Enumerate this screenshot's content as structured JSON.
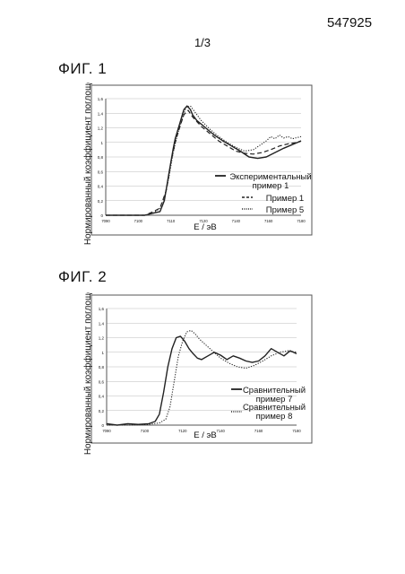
{
  "header": {
    "patent_number": "547925",
    "sheet": "1/3"
  },
  "colors": {
    "line": "#222222",
    "grid": "#bbbbbb",
    "frame": "#555555"
  },
  "figures": [
    {
      "label": "ФИГ. 1"
    },
    {
      "label": "ФИГ. 2"
    }
  ],
  "chart_data": [
    {
      "type": "line",
      "title": "",
      "xlabel": "E / эВ",
      "ylabel": "Нормированный коэффициент поглощения",
      "xlim": [
        7090,
        7180
      ],
      "ylim": [
        0,
        1.6
      ],
      "x_ticks": [
        "7090",
        "7100",
        "7110",
        "7120",
        "7140",
        "7160",
        "7180"
      ],
      "y_ticks": [
        "0",
        "0,2",
        "0,4",
        "0,6",
        "0,8",
        "1",
        "1,2",
        "1,4",
        "1,6"
      ],
      "grid": "horizontal",
      "legend_position": "lower-right",
      "series": [
        {
          "name": "Экспериментальный пример 1",
          "style": "solid",
          "x": [
            7090,
            7108,
            7112,
            7115,
            7117,
            7119,
            7121,
            7122,
            7124,
            7126,
            7127.5,
            7129,
            7130,
            7132,
            7134,
            7136,
            7138,
            7140,
            7144,
            7148,
            7152,
            7156,
            7160,
            7164,
            7168,
            7172,
            7176,
            7180
          ],
          "y": [
            0,
            0,
            0.03,
            0.05,
            0.2,
            0.55,
            0.9,
            1.05,
            1.25,
            1.45,
            1.5,
            1.45,
            1.38,
            1.3,
            1.25,
            1.2,
            1.15,
            1.1,
            1.02,
            0.95,
            0.88,
            0.8,
            0.78,
            0.8,
            0.86,
            0.92,
            0.97,
            1.02
          ]
        },
        {
          "name": "Пример 1",
          "style": "dashed",
          "x": [
            7090,
            7108,
            7112,
            7115,
            7118,
            7120,
            7122,
            7124,
            7126,
            7128,
            7130,
            7134,
            7138,
            7142,
            7146,
            7150,
            7154,
            7158,
            7162,
            7166,
            7170,
            7174,
            7178,
            7180
          ],
          "y": [
            0,
            0,
            0.05,
            0.1,
            0.35,
            0.72,
            1.0,
            1.2,
            1.38,
            1.44,
            1.35,
            1.22,
            1.12,
            1.02,
            0.95,
            0.88,
            0.85,
            0.84,
            0.86,
            0.9,
            0.95,
            0.98,
            1.0,
            1.02
          ]
        },
        {
          "name": "Пример 5",
          "style": "dotted",
          "x": [
            7090,
            7108,
            7112,
            7116,
            7119,
            7121,
            7123,
            7125,
            7127,
            7129,
            7131,
            7134,
            7138,
            7142,
            7146,
            7150,
            7154,
            7158,
            7162,
            7164,
            7166,
            7168,
            7170,
            7172,
            7174,
            7176,
            7180
          ],
          "y": [
            0,
            0,
            0.03,
            0.12,
            0.5,
            0.85,
            1.1,
            1.3,
            1.48,
            1.5,
            1.42,
            1.3,
            1.18,
            1.08,
            1.0,
            0.93,
            0.88,
            0.9,
            0.98,
            1.02,
            1.08,
            1.05,
            1.1,
            1.06,
            1.08,
            1.05,
            1.08
          ]
        }
      ]
    },
    {
      "type": "line",
      "title": "",
      "xlabel": "E / эВ",
      "ylabel": "Нормированный коэффициент поглощения",
      "xlim": [
        7090,
        7180
      ],
      "ylim": [
        0,
        1.6
      ],
      "x_ticks": [
        "7090",
        "7100",
        "7120",
        "7140",
        "7160",
        "7180"
      ],
      "y_ticks": [
        "0",
        "0,2",
        "0,4",
        "0,6",
        "0,8",
        "1",
        "1,2",
        "1,4",
        "1,6"
      ],
      "grid": "horizontal",
      "legend_position": "lower-right",
      "series": [
        {
          "name": "Сравнительный пример 7",
          "style": "solid",
          "x": [
            7090,
            7095,
            7100,
            7105,
            7110,
            7113,
            7115,
            7117,
            7119,
            7121,
            7123,
            7125,
            7127,
            7129,
            7131,
            7133,
            7135,
            7138,
            7141,
            7144,
            7147,
            7150,
            7153,
            7156,
            7159,
            7162,
            7165,
            7168,
            7171,
            7174,
            7177,
            7180
          ],
          "y": [
            0.02,
            0,
            0.02,
            0.01,
            0.02,
            0.05,
            0.15,
            0.45,
            0.8,
            1.05,
            1.2,
            1.22,
            1.15,
            1.05,
            0.98,
            0.92,
            0.9,
            0.95,
            1.0,
            0.96,
            0.9,
            0.95,
            0.92,
            0.88,
            0.86,
            0.88,
            0.95,
            1.05,
            1.0,
            0.95,
            1.02,
            0.98
          ]
        },
        {
          "name": "Сравнительный пример 8",
          "style": "dotted",
          "x": [
            7090,
            7100,
            7110,
            7115,
            7118,
            7120,
            7122,
            7124,
            7126,
            7128,
            7130,
            7132,
            7134,
            7137,
            7140,
            7144,
            7148,
            7152,
            7156,
            7160,
            7164,
            7168,
            7172,
            7176,
            7180
          ],
          "y": [
            0,
            0,
            0.01,
            0.03,
            0.08,
            0.25,
            0.6,
            0.95,
            1.15,
            1.28,
            1.3,
            1.25,
            1.18,
            1.1,
            1.02,
            0.92,
            0.85,
            0.8,
            0.78,
            0.82,
            0.88,
            0.95,
            1.0,
            1.02,
            1.0
          ]
        }
      ]
    }
  ]
}
